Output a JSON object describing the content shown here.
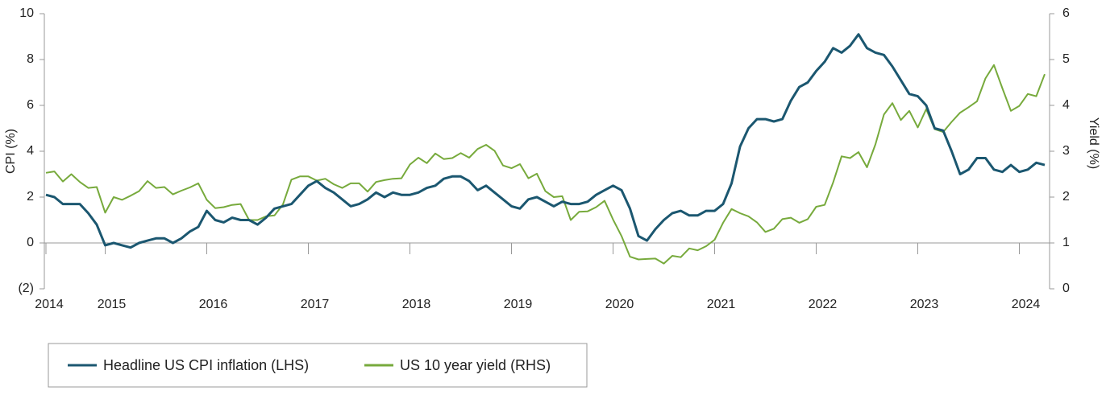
{
  "chart_data": {
    "type": "line",
    "ylabel": "CPI (%)",
    "y2label": "Yield (%)",
    "categories": [
      "2014",
      null,
      null,
      null,
      null,
      null,
      null,
      "2015",
      null,
      null,
      null,
      null,
      null,
      null,
      null,
      null,
      null,
      null,
      null,
      "2016",
      null,
      null,
      null,
      null,
      null,
      null,
      null,
      null,
      null,
      null,
      null,
      "2017",
      null,
      null,
      null,
      null,
      null,
      null,
      null,
      null,
      null,
      null,
      null,
      "2018",
      null,
      null,
      null,
      null,
      null,
      null,
      null,
      null,
      null,
      null,
      null,
      "2019",
      null,
      null,
      null,
      null,
      null,
      null,
      null,
      null,
      null,
      null,
      null,
      "2020",
      null,
      null,
      null,
      null,
      null,
      null,
      null,
      null,
      null,
      null,
      null,
      "2021",
      null,
      null,
      null,
      null,
      null,
      null,
      null,
      null,
      null,
      null,
      null,
      "2022",
      null,
      null,
      null,
      null,
      null,
      null,
      null,
      null,
      null,
      null,
      null,
      "2023",
      null,
      null,
      null,
      null,
      null,
      null,
      null,
      null,
      null,
      null,
      null,
      "2024",
      null,
      null,
      null
    ],
    "ylim": [
      -2,
      10
    ],
    "yticks": [
      {
        "value": -2,
        "label": "(2)"
      },
      0,
      2,
      4,
      6,
      8,
      10
    ],
    "y2lim": [
      0,
      6
    ],
    "y2ticks": [
      0,
      1,
      2,
      3,
      4,
      5,
      6
    ],
    "series": [
      {
        "name": "Headline US CPI inflation (LHS)",
        "color": "#1b5770",
        "values": [
          2.1,
          2.0,
          1.7,
          1.7,
          1.7,
          1.3,
          0.8,
          -0.1,
          0.0,
          -0.1,
          -0.2,
          0.0,
          0.1,
          0.2,
          0.2,
          0.0,
          0.2,
          0.5,
          0.7,
          1.4,
          1.0,
          0.9,
          1.1,
          1.0,
          1.0,
          0.8,
          1.1,
          1.5,
          1.6,
          1.7,
          2.1,
          2.5,
          2.7,
          2.4,
          2.2,
          1.9,
          1.6,
          1.7,
          1.9,
          2.2,
          2.0,
          2.2,
          2.1,
          2.1,
          2.2,
          2.4,
          2.5,
          2.8,
          2.9,
          2.9,
          2.7,
          2.3,
          2.5,
          2.2,
          1.9,
          1.6,
          1.5,
          1.9,
          2.0,
          1.8,
          1.6,
          1.8,
          1.7,
          1.7,
          1.8,
          2.1,
          2.3,
          2.5,
          2.3,
          1.5,
          0.3,
          0.1,
          0.6,
          1.0,
          1.3,
          1.4,
          1.2,
          1.2,
          1.4,
          1.4,
          1.7,
          2.6,
          4.2,
          5.0,
          5.4,
          5.4,
          5.3,
          5.4,
          6.2,
          6.8,
          7.0,
          7.5,
          7.9,
          8.5,
          8.3,
          8.6,
          9.1,
          8.5,
          8.3,
          8.2,
          7.7,
          7.1,
          6.5,
          6.4,
          6.0,
          5.0,
          4.9,
          4.0,
          3.0,
          3.2,
          3.7,
          3.7,
          3.2,
          3.1,
          3.4,
          3.1,
          3.2,
          3.5,
          3.4
        ]
      },
      {
        "name": "US 10 year yield (RHS)",
        "color": "#77aa3c",
        "axis": "y2",
        "values": [
          2.53,
          2.56,
          2.34,
          2.5,
          2.33,
          2.2,
          2.22,
          1.66,
          2.0,
          1.94,
          2.03,
          2.13,
          2.35,
          2.2,
          2.22,
          2.06,
          2.14,
          2.21,
          2.3,
          1.94,
          1.76,
          1.78,
          1.83,
          1.85,
          1.5,
          1.5,
          1.58,
          1.6,
          1.84,
          2.38,
          2.45,
          2.45,
          2.36,
          2.4,
          2.28,
          2.2,
          2.3,
          2.3,
          2.12,
          2.33,
          2.37,
          2.4,
          2.41,
          2.71,
          2.86,
          2.74,
          2.95,
          2.83,
          2.85,
          2.96,
          2.86,
          3.05,
          3.14,
          3.01,
          2.69,
          2.63,
          2.72,
          2.41,
          2.51,
          2.13,
          2.0,
          2.02,
          1.5,
          1.68,
          1.69,
          1.78,
          1.92,
          1.51,
          1.15,
          0.7,
          0.64,
          0.65,
          0.66,
          0.55,
          0.72,
          0.69,
          0.88,
          0.84,
          0.93,
          1.07,
          1.44,
          1.74,
          1.65,
          1.58,
          1.45,
          1.24,
          1.31,
          1.52,
          1.55,
          1.44,
          1.52,
          1.79,
          1.83,
          2.32,
          2.89,
          2.85,
          2.98,
          2.65,
          3.15,
          3.8,
          4.05,
          3.68,
          3.88,
          3.52,
          3.92,
          3.48,
          3.42,
          3.64,
          3.84,
          3.96,
          4.09,
          4.59,
          4.88,
          4.37,
          3.88,
          3.99,
          4.25,
          4.2,
          4.68
        ]
      }
    ]
  }
}
